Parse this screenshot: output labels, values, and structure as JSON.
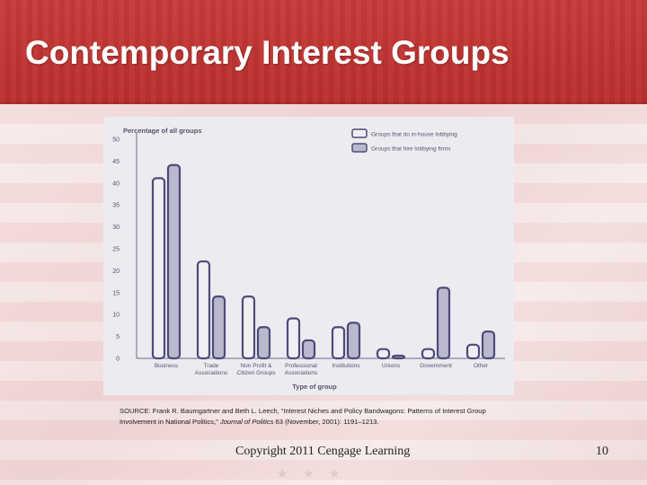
{
  "slide": {
    "title": "Contemporary Interest Groups",
    "source_prefix": "SOURCE: Frank R. Baumgartner and Beth L. Leech, “Interest Niches and Policy Bandwagons: Patterns of Interest Group Involvement in National Politics,”",
    "source_journal": "Journal of Politics",
    "source_suffix": "63 (November, 2001): 1191–1213.",
    "copyright": "Copyright 2011 Cengage Learning",
    "page_number": "10",
    "decor_stars": "★ ★ ★"
  },
  "colors": {
    "header_red": "#c0362f",
    "series_inhouse": "#eeeef3",
    "series_firms": "#b9b8cc",
    "bar_outline": "#4d4b7a",
    "axis": "#6a688f",
    "text": "#555370"
  },
  "chart_data": {
    "type": "bar",
    "title": "Percentage of all groups",
    "xlabel": "Type of group",
    "ylabel": "",
    "ylim": [
      0,
      50
    ],
    "yticks": [
      0,
      5,
      10,
      15,
      20,
      25,
      30,
      35,
      40,
      45,
      50
    ],
    "grid": false,
    "legend_position": "top-right",
    "categories": [
      "Business",
      "Trade Associations",
      "Non Profit & Citizen Groups",
      "Professional Associations",
      "Institutions",
      "Unions",
      "Government",
      "Other"
    ],
    "series": [
      {
        "name": "Groups that do in-house lobbying",
        "color": "#eeeef3",
        "values": [
          40.5,
          21.5,
          13.5,
          8.5,
          6.5,
          1.5,
          1.5,
          2.5
        ]
      },
      {
        "name": "Groups that hire lobbying firms",
        "color": "#b9b8cc",
        "values": [
          43.5,
          13.5,
          6.5,
          3.5,
          7.5,
          0,
          15.5,
          5.5
        ]
      }
    ]
  }
}
